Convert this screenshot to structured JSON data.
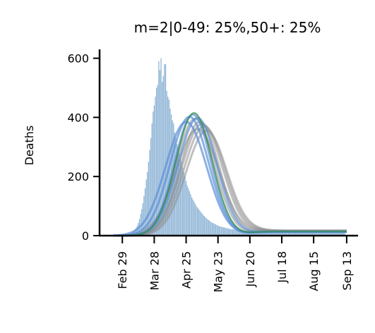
{
  "chart_data": {
    "type": "bar+line",
    "title": "m=2|0-49: 25%,50+: 25%",
    "ylabel": "Deaths",
    "xlabel": "",
    "ylim": [
      0,
      630
    ],
    "yticks": [
      0,
      200,
      400,
      600
    ],
    "yticklabels": [
      "0",
      "200",
      "400",
      "600"
    ],
    "xticks": [
      {
        "label": "Feb 29",
        "day": 0
      },
      {
        "label": "Mar 28",
        "day": 28
      },
      {
        "label": "Apr 25",
        "day": 56
      },
      {
        "label": "May 23",
        "day": 84
      },
      {
        "label": "Jun 20",
        "day": 112
      },
      {
        "label": "Jul 18",
        "day": 140
      },
      {
        "label": "Aug 15",
        "day": 168
      },
      {
        "label": "Sep 13",
        "day": 197
      }
    ],
    "xlim_days": [
      -20,
      207
    ],
    "bars": {
      "start_day": 0,
      "values": [
        1,
        1,
        2,
        2,
        3,
        4,
        5,
        7,
        9,
        12,
        15,
        20,
        25,
        33,
        43,
        56,
        73,
        90,
        110,
        135,
        160,
        190,
        215,
        250,
        290,
        330,
        380,
        420,
        440,
        470,
        500,
        510,
        590,
        560,
        600,
        520,
        540,
        580,
        580,
        490,
        470,
        460,
        430,
        410,
        390,
        380,
        350,
        330,
        310,
        300,
        280,
        260,
        250,
        230,
        215,
        200,
        185,
        170,
        160,
        150,
        140,
        130,
        122,
        115,
        108,
        100,
        95,
        90,
        85,
        80,
        75,
        70,
        66,
        62,
        58,
        55,
        52,
        49,
        46,
        44,
        42,
        40,
        38,
        36,
        34,
        32,
        31,
        30,
        29,
        28,
        27,
        26,
        25,
        24,
        23,
        22,
        22,
        21,
        21,
        20,
        20,
        19,
        19,
        18,
        18,
        17,
        17,
        17,
        16,
        16,
        16,
        16,
        15,
        15,
        15,
        15,
        15,
        15,
        15,
        15,
        15,
        15,
        15,
        15,
        15,
        15,
        15,
        15,
        15,
        15,
        15,
        15,
        15,
        15,
        15,
        15,
        15,
        15,
        15,
        15,
        15,
        15,
        15,
        15,
        15,
        15,
        15,
        15,
        15,
        15,
        15,
        15,
        15,
        15,
        15,
        15,
        15,
        15,
        15,
        15,
        15,
        15,
        15,
        15,
        15,
        15,
        15,
        15,
        15,
        15,
        15,
        15,
        15,
        15,
        15,
        15,
        15,
        15,
        15,
        15,
        15,
        15,
        15,
        15,
        15,
        15,
        15,
        15,
        15,
        15,
        15,
        15,
        15,
        15,
        15,
        15
      ]
    },
    "colors": {
      "bars": "#8fb5d6",
      "grey_fits": "#8c8c8c",
      "blue_fits": "#5b8fd6",
      "green_fit": "#2e8b3e",
      "axis": "#000000"
    },
    "series": [
      {
        "color": "green",
        "peak_day": 63,
        "peak": 415,
        "width": 16,
        "tail": 14
      },
      {
        "color": "blue",
        "peak_day": 59,
        "peak": 402,
        "width": 17,
        "tail": 13
      },
      {
        "color": "blue",
        "peak_day": 62,
        "peak": 410,
        "width": 16,
        "tail": 14
      },
      {
        "color": "blue",
        "peak_day": 66,
        "peak": 398,
        "width": 17,
        "tail": 13
      },
      {
        "color": "blue",
        "peak_day": 56,
        "peak": 385,
        "width": 18,
        "tail": 12
      },
      {
        "color": "grey",
        "peak_day": 64,
        "peak": 395,
        "width": 17,
        "tail": 15
      },
      {
        "color": "grey",
        "peak_day": 68,
        "peak": 385,
        "width": 17,
        "tail": 16
      },
      {
        "color": "grey",
        "peak_day": 70,
        "peak": 378,
        "width": 18,
        "tail": 16
      },
      {
        "color": "grey",
        "peak_day": 72,
        "peak": 370,
        "width": 18,
        "tail": 17
      },
      {
        "color": "grey",
        "peak_day": 66,
        "peak": 360,
        "width": 19,
        "tail": 16
      },
      {
        "color": "grey",
        "peak_day": 74,
        "peak": 355,
        "width": 18,
        "tail": 17
      }
    ]
  }
}
